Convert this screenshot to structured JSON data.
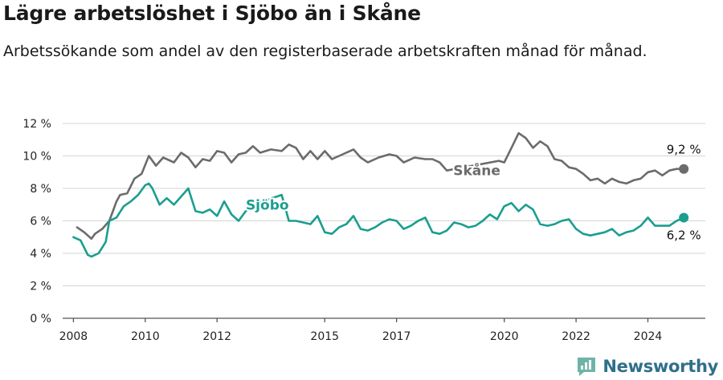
{
  "header": {
    "title": "Lägre arbetslöshet i Sjöbo än i Skåne",
    "subtitle": "Arbetssökande som andel av den registerbaserade arbetskraften månad för månad."
  },
  "brand": {
    "name": "Newsworthy",
    "icon": "newsworthy-logo-icon",
    "color": "#2f6f8a"
  },
  "chart_data": {
    "type": "line",
    "title": "Lägre arbetslöshet i Sjöbo än i Skåne",
    "subtitle": "Arbetssökande som andel av den registerbaserade arbetskraften månad för månad.",
    "xlabel": "",
    "ylabel": "",
    "xlim": [
      2007.7,
      2025.6
    ],
    "ylim": [
      0,
      12
    ],
    "grid": true,
    "x_ticks": [
      2008,
      2010,
      2012,
      2015,
      2017,
      2020,
      2022,
      2024
    ],
    "x_tick_labels": [
      "2008",
      "2010",
      "2012",
      "2015",
      "2017",
      "2020",
      "2022",
      "2024"
    ],
    "y_ticks": [
      0,
      2,
      4,
      6,
      8,
      10,
      12
    ],
    "y_tick_labels": [
      "0 %",
      "2 %",
      "4 %",
      "6 %",
      "8 %",
      "10 %",
      "12 %"
    ],
    "series": [
      {
        "name": "Skåne",
        "color": "#6b6b6b",
        "end_label": "9,2 %",
        "gaps": [
          [
            2018.5,
            2019.85
          ]
        ],
        "x": [
          2008.1,
          2008.3,
          2008.5,
          2008.6,
          2008.8,
          2009.0,
          2009.2,
          2009.3,
          2009.5,
          2009.7,
          2009.9,
          2010.1,
          2010.3,
          2010.5,
          2010.6,
          2010.8,
          2011.0,
          2011.2,
          2011.4,
          2011.6,
          2011.8,
          2012.0,
          2012.2,
          2012.4,
          2012.6,
          2012.8,
          2013.0,
          2013.2,
          2013.5,
          2013.8,
          2014.0,
          2014.2,
          2014.4,
          2014.6,
          2014.8,
          2015.0,
          2015.2,
          2015.5,
          2015.8,
          2016.0,
          2016.2,
          2016.5,
          2016.8,
          2017.0,
          2017.2,
          2017.5,
          2017.8,
          2018.0,
          2018.2,
          2018.4,
          2019.85,
          2020.0,
          2020.2,
          2020.4,
          2020.6,
          2020.8,
          2021.0,
          2021.2,
          2021.4,
          2021.6,
          2021.8,
          2022.0,
          2022.2,
          2022.4,
          2022.6,
          2022.8,
          2023.0,
          2023.2,
          2023.4,
          2023.6,
          2023.8,
          2024.0,
          2024.2,
          2024.4,
          2024.6,
          2024.8,
          2025.0
        ],
        "values": [
          5.6,
          5.3,
          4.9,
          5.2,
          5.5,
          6.0,
          7.2,
          7.6,
          7.7,
          8.6,
          8.9,
          10.0,
          9.4,
          9.9,
          9.8,
          9.6,
          10.2,
          9.9,
          9.3,
          9.8,
          9.7,
          10.3,
          10.2,
          9.6,
          10.1,
          10.2,
          10.6,
          10.2,
          10.4,
          10.3,
          10.7,
          10.5,
          9.8,
          10.3,
          9.8,
          10.3,
          9.8,
          10.1,
          10.4,
          9.9,
          9.6,
          9.9,
          10.1,
          10.0,
          9.6,
          9.9,
          9.8,
          9.8,
          9.6,
          9.1,
          9.7,
          9.6,
          10.5,
          11.4,
          11.1,
          10.5,
          10.9,
          10.6,
          9.8,
          9.7,
          9.3,
          9.2,
          8.9,
          8.5,
          8.6,
          8.3,
          8.6,
          8.4,
          8.3,
          8.5,
          8.6,
          9.0,
          9.1,
          8.8,
          9.1,
          9.2,
          9.2
        ]
      },
      {
        "name": "Sjöbo",
        "color": "#1a9e90",
        "end_label": "6,2 %",
        "gaps": [
          [
            2013.05,
            2013.8
          ],
          [
            2024.3,
            2024.6
          ]
        ],
        "x": [
          2008.0,
          2008.2,
          2008.4,
          2008.5,
          2008.7,
          2008.9,
          2009.0,
          2009.2,
          2009.4,
          2009.6,
          2009.8,
          2010.0,
          2010.1,
          2010.2,
          2010.4,
          2010.6,
          2010.8,
          2011.0,
          2011.2,
          2011.4,
          2011.6,
          2011.8,
          2012.0,
          2012.2,
          2012.4,
          2012.6,
          2012.8,
          2013.0,
          2013.8,
          2014.0,
          2014.2,
          2014.4,
          2014.6,
          2014.8,
          2015.0,
          2015.2,
          2015.4,
          2015.6,
          2015.8,
          2016.0,
          2016.2,
          2016.4,
          2016.6,
          2016.8,
          2017.0,
          2017.2,
          2017.4,
          2017.6,
          2017.8,
          2018.0,
          2018.2,
          2018.4,
          2018.6,
          2018.8,
          2019.0,
          2019.2,
          2019.4,
          2019.6,
          2019.8,
          2020.0,
          2020.2,
          2020.4,
          2020.6,
          2020.8,
          2021.0,
          2021.2,
          2021.4,
          2021.6,
          2021.8,
          2022.0,
          2022.2,
          2022.4,
          2022.6,
          2022.8,
          2023.0,
          2023.2,
          2023.4,
          2023.6,
          2023.8,
          2024.0,
          2024.2,
          2024.6,
          2024.8,
          2025.0
        ],
        "values": [
          5.0,
          4.8,
          3.9,
          3.8,
          4.0,
          4.7,
          6.0,
          6.2,
          6.9,
          7.2,
          7.6,
          8.2,
          8.3,
          8.0,
          7.0,
          7.4,
          7.0,
          7.5,
          8.0,
          6.6,
          6.5,
          6.7,
          6.3,
          7.2,
          6.4,
          6.0,
          6.6,
          7.0,
          7.6,
          6.0,
          6.0,
          5.9,
          5.8,
          6.3,
          5.3,
          5.2,
          5.6,
          5.8,
          6.3,
          5.5,
          5.4,
          5.6,
          5.9,
          6.1,
          6.0,
          5.5,
          5.7,
          6.0,
          6.2,
          5.3,
          5.2,
          5.4,
          5.9,
          5.8,
          5.6,
          5.7,
          6.0,
          6.4,
          6.1,
          6.9,
          7.1,
          6.6,
          7.0,
          6.7,
          5.8,
          5.7,
          5.8,
          6.0,
          6.1,
          5.5,
          5.2,
          5.1,
          5.2,
          5.3,
          5.5,
          5.1,
          5.3,
          5.4,
          5.7,
          6.2,
          5.7,
          5.7,
          6.0,
          6.2
        ]
      }
    ],
    "annotations": [
      {
        "text": "Skåne",
        "series": "Skåne",
        "near_x": 2018.4,
        "near_y": 9.1
      },
      {
        "text": "Sjöbo",
        "series": "Sjöbo",
        "near_x": 2013.4,
        "near_y": 7.2
      }
    ]
  }
}
